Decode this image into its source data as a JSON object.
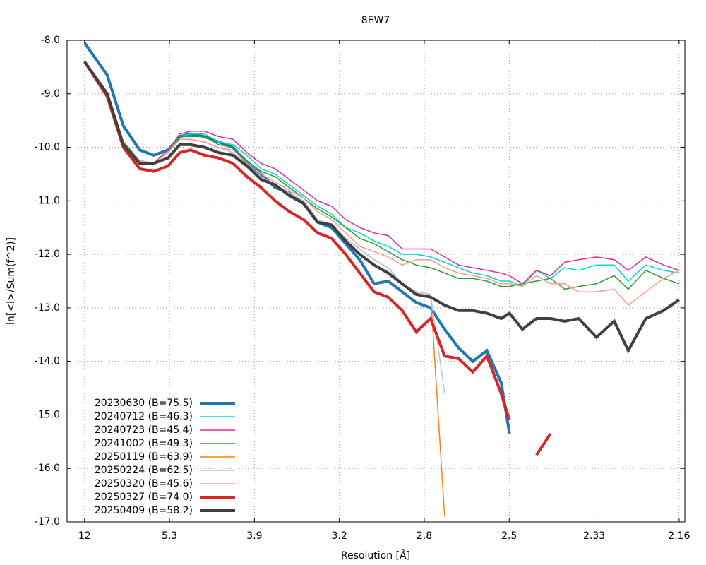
{
  "chart_data": {
    "type": "line",
    "title": "8EW7",
    "xlabel": "Resolution [Å]",
    "ylabel": "ln[<I>/Sum(f^2)]",
    "xlim": [
      0.0008,
      0.2161
    ],
    "ylim": [
      -17.0,
      -8.0
    ],
    "xticks": [
      {
        "value": 0.0069,
        "label": "12"
      },
      {
        "value": 0.0365,
        "label": "5.3"
      },
      {
        "value": 0.0661,
        "label": "3.9"
      },
      {
        "value": 0.0957,
        "label": "3.2"
      },
      {
        "value": 0.1253,
        "label": "2.8"
      },
      {
        "value": 0.1549,
        "label": "2.5"
      },
      {
        "value": 0.1845,
        "label": "2.33"
      },
      {
        "value": 0.2141,
        "label": "2.16"
      }
    ],
    "yticks": [
      {
        "value": -8,
        "label": "-8.0"
      },
      {
        "value": -9,
        "label": "-9.0"
      },
      {
        "value": -10,
        "label": "-10.0"
      },
      {
        "value": -11,
        "label": "-11.0"
      },
      {
        "value": -12,
        "label": "-12.0"
      },
      {
        "value": -13,
        "label": "-13.0"
      },
      {
        "value": -14,
        "label": "-14.0"
      },
      {
        "value": -15,
        "label": "-15.0"
      },
      {
        "value": -16,
        "label": "-16.0"
      },
      {
        "value": -17,
        "label": "-17.0"
      }
    ],
    "grid": true,
    "legend": "lower left",
    "x": [
      0.0069,
      0.0148,
      0.0204,
      0.0261,
      0.031,
      0.036,
      0.0401,
      0.0438,
      0.0487,
      0.0536,
      0.0586,
      0.0635,
      0.0684,
      0.0733,
      0.0782,
      0.0832,
      0.0881,
      0.093,
      0.0979,
      0.1028,
      0.1078,
      0.1127,
      0.1176,
      0.1225,
      0.1275,
      0.1324,
      0.1373,
      0.1422,
      0.1471,
      0.1521,
      0.155,
      0.1595,
      0.1644,
      0.1693,
      0.1742,
      0.1791,
      0.1853,
      0.1915,
      0.1964,
      0.2025,
      0.2087,
      0.2141
    ],
    "series": [
      {
        "name": "20230630 (B=75.5)",
        "color": "#1f77b4",
        "linewidth": 4,
        "values": [
          -8.05,
          -8.65,
          -9.6,
          -10.05,
          -10.15,
          -10.05,
          -9.8,
          -9.75,
          -9.8,
          -9.9,
          -10.0,
          -10.3,
          -10.5,
          -10.75,
          -10.85,
          -11.05,
          -11.4,
          -11.5,
          -11.8,
          -12.1,
          -12.55,
          -12.5,
          -12.7,
          -12.9,
          -13.0,
          -13.4,
          -13.75,
          -14.0,
          -13.8,
          -14.4,
          -15.35,
          null,
          null,
          null,
          null,
          null,
          null,
          null,
          null,
          null,
          null,
          null
        ]
      },
      {
        "name": "20240712 (B=46.3)",
        "color": "#00d8d8",
        "linewidth": 1.5,
        "values": [
          -8.4,
          -9.0,
          -9.9,
          -10.25,
          -10.3,
          -10.05,
          -9.8,
          -9.75,
          -9.75,
          -9.9,
          -9.95,
          -10.15,
          -10.4,
          -10.5,
          -10.7,
          -10.9,
          -11.1,
          -11.25,
          -11.5,
          -11.6,
          -11.75,
          -11.85,
          -12.0,
          -12.0,
          -12.05,
          -12.15,
          -12.25,
          -12.35,
          -12.4,
          -12.5,
          -12.5,
          -12.6,
          -12.3,
          -12.45,
          -12.25,
          -12.3,
          -12.2,
          -12.2,
          -12.5,
          -12.2,
          -12.3,
          -12.35
        ]
      },
      {
        "name": "20240723 (B=45.4)",
        "color": "#e7298a",
        "linewidth": 1.5,
        "values": [
          -8.4,
          -9.0,
          -9.9,
          -10.25,
          -10.3,
          -10.05,
          -9.75,
          -9.7,
          -9.7,
          -9.8,
          -9.85,
          -10.1,
          -10.3,
          -10.4,
          -10.6,
          -10.8,
          -11.0,
          -11.1,
          -11.35,
          -11.5,
          -11.6,
          -11.65,
          -11.9,
          -11.9,
          -11.9,
          -12.05,
          -12.2,
          -12.25,
          -12.3,
          -12.35,
          -12.4,
          -12.55,
          -12.3,
          -12.4,
          -12.15,
          -12.1,
          -12.05,
          -12.1,
          -12.3,
          -12.05,
          -12.2,
          -12.3
        ]
      },
      {
        "name": "20241002 (B=49.3)",
        "color": "#2ca02c",
        "linewidth": 1.5,
        "values": [
          -8.4,
          -9.0,
          -9.9,
          -10.25,
          -10.3,
          -10.1,
          -9.8,
          -9.8,
          -9.8,
          -9.95,
          -10.0,
          -10.25,
          -10.45,
          -10.55,
          -10.75,
          -10.95,
          -11.15,
          -11.3,
          -11.5,
          -11.7,
          -11.8,
          -11.95,
          -12.1,
          -12.2,
          -12.25,
          -12.35,
          -12.45,
          -12.45,
          -12.5,
          -12.6,
          -12.6,
          -12.55,
          -12.5,
          -12.45,
          -12.65,
          -12.6,
          -12.55,
          -12.4,
          -12.65,
          -12.3,
          -12.45,
          -12.55
        ]
      },
      {
        "name": "20250119 (B=63.9)",
        "color": "#ff7f0e",
        "linewidth": 1.5,
        "values": [
          -8.4,
          -9.0,
          -9.95,
          -10.25,
          -10.3,
          -10.1,
          -9.85,
          -9.85,
          -9.9,
          -10.0,
          -10.1,
          -10.35,
          -10.55,
          -10.7,
          -10.85,
          -11.0,
          -11.35,
          -11.45,
          -11.7,
          -11.9,
          -12.1,
          -12.25,
          -12.55,
          -12.7,
          -12.75,
          -16.9,
          null,
          null,
          null,
          null,
          null,
          null,
          null,
          null,
          null,
          null,
          null,
          null,
          null,
          null,
          null,
          null
        ]
      },
      {
        "name": "20250224 (B=62.5)",
        "color": "#aec7e8",
        "linewidth": 1.5,
        "values": [
          -8.4,
          -9.0,
          -9.95,
          -10.25,
          -10.3,
          -10.1,
          -9.85,
          -9.85,
          -9.9,
          -10.0,
          -10.1,
          -10.35,
          -10.55,
          -10.7,
          -10.85,
          -11.0,
          -11.35,
          -11.45,
          -11.7,
          -11.9,
          -12.1,
          -12.25,
          -12.55,
          -12.7,
          -12.75,
          -14.6,
          null,
          null,
          null,
          null,
          null,
          null,
          null,
          null,
          null,
          null,
          null,
          null,
          null,
          null,
          null,
          null
        ]
      },
      {
        "name": "20250320 (B=45.6)",
        "color": "#ff9896",
        "linewidth": 1.5,
        "values": [
          -8.4,
          -9.0,
          -9.95,
          -10.25,
          -10.3,
          -10.1,
          -9.85,
          -9.85,
          -9.9,
          -10.0,
          -10.05,
          -10.3,
          -10.5,
          -10.65,
          -10.8,
          -10.95,
          -11.2,
          -11.35,
          -11.6,
          -11.85,
          -11.95,
          -12.05,
          -12.2,
          -12.1,
          -12.1,
          -12.25,
          -12.35,
          -12.4,
          -12.45,
          -12.55,
          -12.55,
          -12.6,
          -12.4,
          -12.55,
          -12.55,
          -12.7,
          -12.7,
          -12.65,
          -12.95,
          -12.7,
          -12.45,
          -12.3
        ]
      },
      {
        "name": "20250327 (B=74.0)",
        "color": "#d62728",
        "linewidth": 4,
        "values": [
          -8.4,
          -9.05,
          -10.0,
          -10.4,
          -10.45,
          -10.35,
          -10.1,
          -10.05,
          -10.15,
          -10.2,
          -10.3,
          -10.55,
          -10.75,
          -11.0,
          -11.2,
          -11.35,
          -11.6,
          -11.7,
          -12.0,
          -12.35,
          -12.7,
          -12.8,
          -13.05,
          -13.45,
          -13.2,
          -13.9,
          -13.95,
          -14.2,
          -13.9,
          -14.6,
          -15.1,
          null,
          -15.75,
          -15.35,
          null,
          null,
          null,
          null,
          null,
          null,
          null,
          null
        ]
      },
      {
        "name": "20250409 (B=58.2)",
        "color": "#404040",
        "linewidth": 4,
        "values": [
          -8.4,
          -9.0,
          -9.95,
          -10.3,
          -10.3,
          -10.2,
          -9.95,
          -9.95,
          -10.0,
          -10.1,
          -10.15,
          -10.35,
          -10.6,
          -10.7,
          -10.9,
          -11.05,
          -11.4,
          -11.45,
          -11.75,
          -12.0,
          -12.2,
          -12.35,
          -12.55,
          -12.75,
          -12.8,
          -12.95,
          -13.05,
          -13.05,
          -13.1,
          -13.2,
          -13.1,
          -13.4,
          -13.2,
          -13.2,
          -13.25,
          -13.2,
          -13.55,
          -13.25,
          -13.8,
          -13.2,
          -13.05,
          -12.85
        ]
      }
    ]
  }
}
